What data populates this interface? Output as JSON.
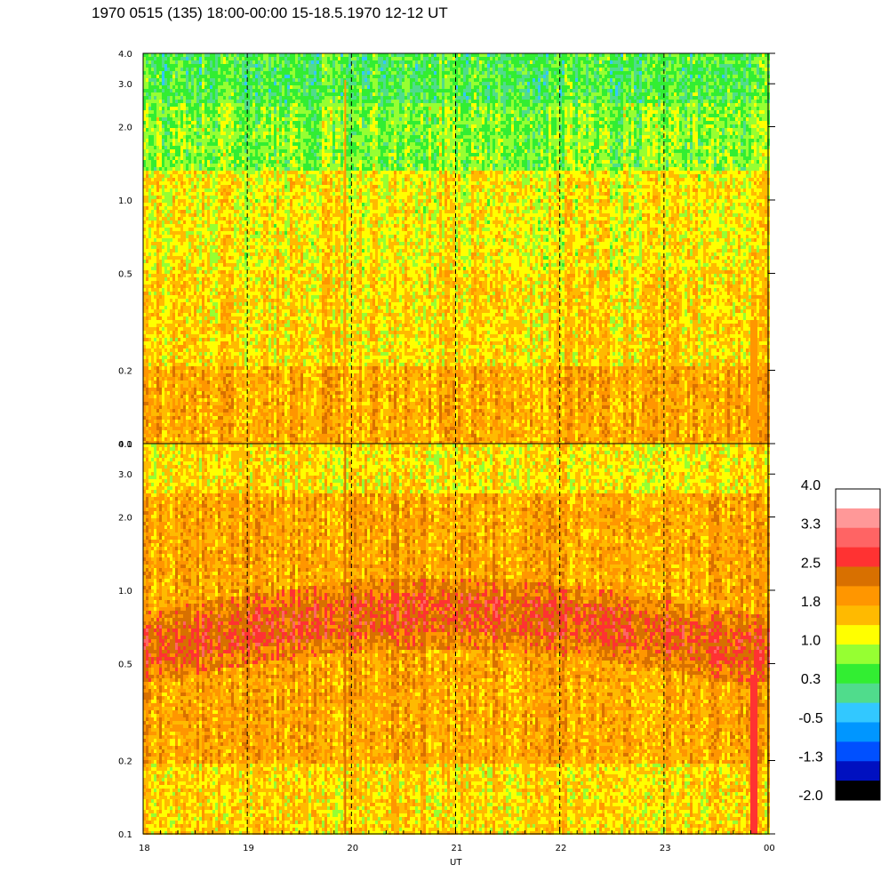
{
  "title": "1970 0515 (135) 18:00-00:00 15-18.5.1970  12-12 UT",
  "chart_data": [
    {
      "type": "heatmap",
      "panel": "upper",
      "x_range": [
        18,
        24
      ],
      "x_ticks": [
        "18",
        "19",
        "20",
        "21",
        "22",
        "23",
        "00"
      ],
      "y_scale": "log",
      "y_range": [
        0.1,
        4.0
      ],
      "y_ticks": [
        "0.1",
        "0.2",
        "0.5",
        "1.0",
        "2.0",
        "3.0",
        "4.0"
      ],
      "vertical_dashed_lines_at": [
        19,
        20,
        21,
        22,
        23
      ],
      "dominant_levels": {
        "low": 0.3,
        "mid": 1.0,
        "high_freq": -0.5
      }
    },
    {
      "type": "heatmap",
      "panel": "lower",
      "x_range": [
        18,
        24
      ],
      "x_ticks": [
        "18",
        "19",
        "20",
        "21",
        "22",
        "23",
        "00"
      ],
      "y_scale": "log",
      "y_range": [
        0.1,
        4.0
      ],
      "y_ticks": [
        "0.1",
        "0.2",
        "0.5",
        "1.0",
        "2.0",
        "3.0",
        "4.0"
      ],
      "vertical_dashed_lines_at": [
        19,
        20,
        21,
        22,
        23
      ],
      "band": {
        "description_value_level": 2.5,
        "center_freq_range": [
          0.55,
          1.0
        ]
      },
      "xlabel": "UT"
    }
  ],
  "colorbar": {
    "labels": [
      "4.0",
      "3.3",
      "2.5",
      "1.8",
      "1.0",
      "0.3",
      "-0.5",
      "-1.3",
      "-2.0"
    ],
    "colors": [
      "#ffffff",
      "#ff9898",
      "#ff6464",
      "#ff3232",
      "#d87000",
      "#ff9600",
      "#ffba00",
      "#ffff00",
      "#96ff32",
      "#32ee32",
      "#50dc8c",
      "#32c8ff",
      "#0096ff",
      "#0050ff",
      "#0010c0",
      "#000000"
    ]
  },
  "xlabel": "UT"
}
